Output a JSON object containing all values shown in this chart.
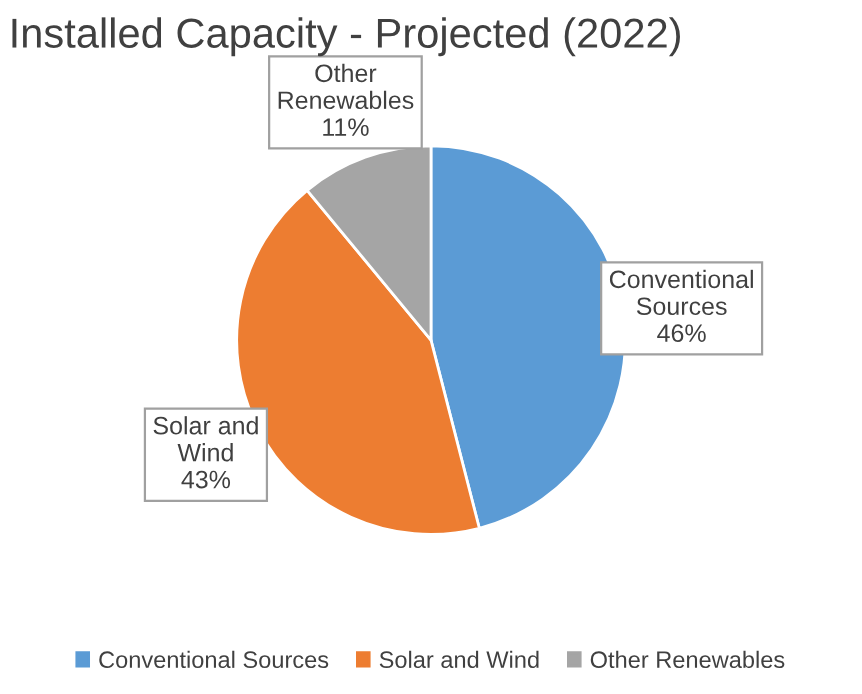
{
  "chart_data": {
    "type": "pie",
    "title": "Installed Capacity - Projected (2022)",
    "categories": [
      "Conventional Sources",
      "Solar and Wind",
      "Other Renewables"
    ],
    "values": [
      46,
      43,
      11
    ],
    "colors": [
      "#5b9bd5",
      "#ed7d31",
      "#a5a5a5"
    ],
    "value_labels": [
      "46%",
      "43%",
      "11%"
    ],
    "legend": "bottom"
  }
}
